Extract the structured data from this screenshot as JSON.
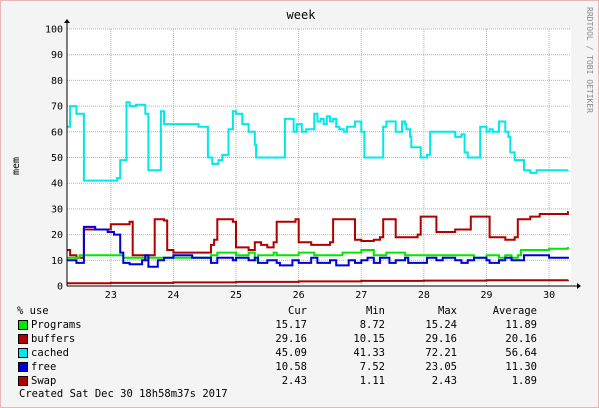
{
  "chart_data": {
    "type": "line",
    "title": "week",
    "ylabel": "mem",
    "watermark": "RRDTOOL / TOBI OETIKER",
    "ylim": [
      0,
      100
    ],
    "yticks": [
      0,
      10,
      20,
      30,
      40,
      50,
      60,
      70,
      80,
      90,
      100
    ],
    "xlim": [
      22.3,
      30.35
    ],
    "xticks": [
      23,
      24,
      25,
      26,
      27,
      28,
      29,
      30
    ],
    "grid": true,
    "series": [
      {
        "name": "cached",
        "color": "#00e8e8",
        "points": [
          [
            22.3,
            62
          ],
          [
            22.35,
            70
          ],
          [
            22.45,
            67
          ],
          [
            22.55,
            67
          ],
          [
            22.57,
            41
          ],
          [
            22.95,
            41
          ],
          [
            23.1,
            42
          ],
          [
            23.15,
            49
          ],
          [
            23.25,
            71.5
          ],
          [
            23.3,
            70
          ],
          [
            23.4,
            70.5
          ],
          [
            23.55,
            67
          ],
          [
            23.6,
            45
          ],
          [
            23.75,
            45
          ],
          [
            23.8,
            68
          ],
          [
            23.85,
            63
          ],
          [
            24.2,
            63
          ],
          [
            24.4,
            62
          ],
          [
            24.5,
            62
          ],
          [
            24.55,
            50
          ],
          [
            24.62,
            47.5
          ],
          [
            24.72,
            49
          ],
          [
            24.78,
            51
          ],
          [
            24.88,
            61
          ],
          [
            24.95,
            68
          ],
          [
            25.0,
            67
          ],
          [
            25.1,
            63
          ],
          [
            25.2,
            60
          ],
          [
            25.3,
            55
          ],
          [
            25.32,
            50
          ],
          [
            25.7,
            50
          ],
          [
            25.78,
            65
          ],
          [
            25.85,
            65
          ],
          [
            25.92,
            60
          ],
          [
            25.97,
            63
          ],
          [
            26.05,
            60
          ],
          [
            26.12,
            61
          ],
          [
            26.25,
            67
          ],
          [
            26.3,
            64
          ],
          [
            26.35,
            65
          ],
          [
            26.4,
            63
          ],
          [
            26.45,
            66
          ],
          [
            26.5,
            64
          ],
          [
            26.55,
            65
          ],
          [
            26.6,
            62
          ],
          [
            26.65,
            61
          ],
          [
            26.72,
            60
          ],
          [
            26.77,
            62
          ],
          [
            26.9,
            64
          ],
          [
            27.0,
            60
          ],
          [
            27.05,
            50
          ],
          [
            27.3,
            50
          ],
          [
            27.35,
            62
          ],
          [
            27.4,
            64
          ],
          [
            27.5,
            64
          ],
          [
            27.55,
            60
          ],
          [
            27.65,
            64
          ],
          [
            27.7,
            63
          ],
          [
            27.72,
            61
          ],
          [
            27.78,
            58
          ],
          [
            27.8,
            54
          ],
          [
            27.9,
            54
          ],
          [
            27.95,
            50
          ],
          [
            28.05,
            51
          ],
          [
            28.1,
            60
          ],
          [
            28.25,
            60
          ],
          [
            28.5,
            58
          ],
          [
            28.6,
            59
          ],
          [
            28.65,
            52
          ],
          [
            28.7,
            50
          ],
          [
            28.85,
            50
          ],
          [
            28.9,
            62
          ],
          [
            29.0,
            60
          ],
          [
            29.05,
            61
          ],
          [
            29.1,
            60
          ],
          [
            29.2,
            64
          ],
          [
            29.3,
            60
          ],
          [
            29.35,
            58
          ],
          [
            29.38,
            52
          ],
          [
            29.45,
            49
          ],
          [
            29.55,
            49
          ],
          [
            29.6,
            45
          ],
          [
            29.7,
            44
          ],
          [
            29.8,
            45
          ],
          [
            30.3,
            45.09
          ]
        ]
      },
      {
        "name": "buffers",
        "color": "#b00000",
        "points": [
          [
            22.3,
            14
          ],
          [
            22.35,
            12
          ],
          [
            22.45,
            11
          ],
          [
            22.55,
            11
          ],
          [
            22.57,
            22
          ],
          [
            23.0,
            24
          ],
          [
            23.3,
            25
          ],
          [
            23.35,
            12
          ],
          [
            23.5,
            12
          ],
          [
            23.55,
            10
          ],
          [
            23.6,
            12
          ],
          [
            23.7,
            26
          ],
          [
            23.85,
            25.5
          ],
          [
            23.9,
            14
          ],
          [
            24.0,
            13
          ],
          [
            24.6,
            16
          ],
          [
            24.65,
            18
          ],
          [
            24.7,
            26
          ],
          [
            24.95,
            25
          ],
          [
            25.0,
            15
          ],
          [
            25.2,
            14
          ],
          [
            25.3,
            17
          ],
          [
            25.4,
            16
          ],
          [
            25.5,
            15
          ],
          [
            25.6,
            17
          ],
          [
            25.65,
            25
          ],
          [
            25.95,
            26
          ],
          [
            26.0,
            17
          ],
          [
            26.2,
            16
          ],
          [
            26.5,
            17
          ],
          [
            26.55,
            26
          ],
          [
            26.85,
            26
          ],
          [
            26.9,
            18
          ],
          [
            27.0,
            17.5
          ],
          [
            27.2,
            18
          ],
          [
            27.3,
            19
          ],
          [
            27.35,
            26
          ],
          [
            27.45,
            26
          ],
          [
            27.55,
            19
          ],
          [
            27.9,
            20
          ],
          [
            27.95,
            27
          ],
          [
            28.2,
            21
          ],
          [
            28.5,
            22
          ],
          [
            28.7,
            22
          ],
          [
            28.75,
            27
          ],
          [
            29.0,
            27
          ],
          [
            29.05,
            19
          ],
          [
            29.3,
            18
          ],
          [
            29.45,
            19
          ],
          [
            29.5,
            26
          ],
          [
            29.7,
            27
          ],
          [
            29.85,
            28
          ],
          [
            30.3,
            29.16
          ]
        ]
      },
      {
        "name": "Programs",
        "color": "#00e800",
        "points": [
          [
            22.3,
            11
          ],
          [
            22.5,
            12
          ],
          [
            22.8,
            12
          ],
          [
            23.2,
            11
          ],
          [
            23.5,
            11
          ],
          [
            24.0,
            11
          ],
          [
            24.6,
            12
          ],
          [
            24.7,
            13
          ],
          [
            25.0,
            12
          ],
          [
            25.2,
            13
          ],
          [
            25.3,
            10
          ],
          [
            25.35,
            12
          ],
          [
            25.6,
            13
          ],
          [
            25.65,
            12
          ],
          [
            26.0,
            13
          ],
          [
            26.25,
            12
          ],
          [
            26.5,
            12
          ],
          [
            26.6,
            12
          ],
          [
            26.7,
            13
          ],
          [
            27.0,
            14
          ],
          [
            27.1,
            14
          ],
          [
            27.2,
            12
          ],
          [
            27.4,
            13
          ],
          [
            27.7,
            12
          ],
          [
            28.0,
            12
          ],
          [
            28.3,
            12
          ],
          [
            28.6,
            12
          ],
          [
            28.8,
            11
          ],
          [
            29.0,
            12
          ],
          [
            29.2,
            11
          ],
          [
            29.3,
            12
          ],
          [
            29.4,
            11
          ],
          [
            29.5,
            12
          ],
          [
            29.55,
            14
          ],
          [
            30.0,
            14.5
          ],
          [
            30.3,
            15.17
          ]
        ]
      },
      {
        "name": "free",
        "color": "#0000d8",
        "points": [
          [
            22.3,
            10
          ],
          [
            22.45,
            9
          ],
          [
            22.55,
            9
          ],
          [
            22.57,
            23
          ],
          [
            22.75,
            22
          ],
          [
            22.95,
            21
          ],
          [
            23.05,
            20
          ],
          [
            23.15,
            13
          ],
          [
            23.2,
            9
          ],
          [
            23.3,
            8.5
          ],
          [
            23.5,
            10
          ],
          [
            23.55,
            12
          ],
          [
            23.6,
            7.5
          ],
          [
            23.75,
            10
          ],
          [
            23.85,
            11
          ],
          [
            24.0,
            12
          ],
          [
            24.3,
            11
          ],
          [
            24.5,
            11
          ],
          [
            24.6,
            9
          ],
          [
            24.7,
            11
          ],
          [
            24.95,
            10
          ],
          [
            25.0,
            11
          ],
          [
            25.2,
            10
          ],
          [
            25.3,
            11
          ],
          [
            25.35,
            9
          ],
          [
            25.5,
            10
          ],
          [
            25.65,
            9
          ],
          [
            25.7,
            8
          ],
          [
            25.9,
            10
          ],
          [
            26.0,
            9
          ],
          [
            26.2,
            11
          ],
          [
            26.3,
            9
          ],
          [
            26.5,
            10
          ],
          [
            26.6,
            8
          ],
          [
            26.8,
            10
          ],
          [
            26.9,
            9
          ],
          [
            27.0,
            10
          ],
          [
            27.1,
            11
          ],
          [
            27.2,
            9
          ],
          [
            27.3,
            11
          ],
          [
            27.45,
            9
          ],
          [
            27.55,
            10
          ],
          [
            27.7,
            11
          ],
          [
            27.75,
            9
          ],
          [
            27.95,
            9
          ],
          [
            28.05,
            11
          ],
          [
            28.2,
            10
          ],
          [
            28.3,
            11
          ],
          [
            28.5,
            10
          ],
          [
            28.6,
            9
          ],
          [
            28.7,
            10
          ],
          [
            28.8,
            11
          ],
          [
            29.0,
            10
          ],
          [
            29.05,
            9
          ],
          [
            29.2,
            10
          ],
          [
            29.3,
            11
          ],
          [
            29.4,
            10
          ],
          [
            29.5,
            10
          ],
          [
            29.6,
            12
          ],
          [
            29.8,
            12
          ],
          [
            30.0,
            11
          ],
          [
            30.3,
            10.58
          ]
        ]
      },
      {
        "name": "Swap",
        "color": "#b00000",
        "points": [
          [
            22.3,
            1.1
          ],
          [
            23.0,
            1.2
          ],
          [
            24.0,
            1.4
          ],
          [
            25.0,
            1.6
          ],
          [
            26.0,
            1.8
          ],
          [
            27.0,
            2.0
          ],
          [
            28.0,
            2.1
          ],
          [
            29.0,
            2.2
          ],
          [
            30.3,
            2.43
          ]
        ]
      }
    ]
  },
  "legend": {
    "header": {
      "label": "% use",
      "cur": "Cur",
      "min": "Min",
      "max": "Max",
      "avg": "Average"
    },
    "rows": [
      {
        "name": "Programs",
        "color": "#00e800",
        "cur": "15.17",
        "min": "8.72",
        "max": "15.24",
        "avg": "11.89"
      },
      {
        "name": "buffers",
        "color": "#b00000",
        "cur": "29.16",
        "min": "10.15",
        "max": "29.16",
        "avg": "20.16"
      },
      {
        "name": "cached",
        "color": "#00e8e8",
        "cur": "45.09",
        "min": "41.33",
        "max": "72.21",
        "avg": "56.64"
      },
      {
        "name": "free",
        "color": "#0000d8",
        "cur": "10.58",
        "min": "7.52",
        "max": "23.05",
        "avg": "11.30"
      },
      {
        "name": "Swap",
        "color": "#b00000",
        "cur": "2.43",
        "min": "1.11",
        "max": "2.43",
        "avg": "1.89"
      }
    ]
  },
  "footer": {
    "created": "Created Sat Dec 30 18h58m37s 2017"
  }
}
